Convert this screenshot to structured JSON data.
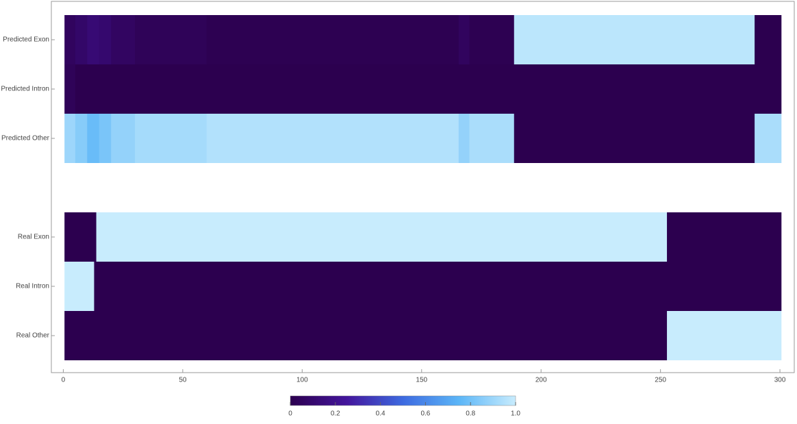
{
  "chart_data": {
    "type": "heatmap",
    "categories": [
      "Predicted Exon",
      "Predicted Intron",
      "Predicted Other",
      null,
      "Real Exon",
      "Real Intron",
      "Real Other"
    ],
    "rows": [
      {
        "bins": [
          0.5,
          5,
          10,
          15,
          20,
          30,
          60,
          165.5,
          170,
          188.7,
          289.4,
          300.5
        ],
        "values": [
          0.05,
          0.08,
          0.12,
          0.1,
          0.06,
          0.03,
          0.01,
          0.05,
          0.01,
          0.97,
          0.0
        ]
      },
      {
        "bins": [
          0.5,
          5,
          300.5
        ],
        "values": [
          0.03,
          0.0
        ]
      },
      {
        "bins": [
          0.5,
          5,
          10,
          15,
          20,
          30,
          60,
          165.5,
          170,
          188.7,
          289.4,
          300.5
        ],
        "values": [
          0.9,
          0.85,
          0.78,
          0.82,
          0.88,
          0.92,
          0.95,
          0.88,
          0.93,
          0.0,
          0.93
        ]
      },
      null,
      {
        "bins": [
          0.5,
          13.8,
          252.7,
          300.5
        ],
        "values": [
          0.0,
          1.0,
          0.0
        ]
      },
      {
        "bins": [
          0.5,
          12.9,
          300.5
        ],
        "values": [
          1.0,
          0.0
        ]
      },
      {
        "bins": [
          0.5,
          252.7,
          300.5
        ],
        "values": [
          0.0,
          1.0
        ]
      }
    ],
    "xlim": [
      -5,
      306
    ],
    "xticks": [
      0,
      50,
      100,
      150,
      200,
      250,
      300
    ],
    "zlim": [
      0,
      1
    ],
    "zticks": [
      0,
      0.2,
      0.4,
      0.6,
      0.8,
      {
        "value": 1,
        "label": "1.0"
      }
    ],
    "colormap": [
      "#2c004f",
      "#43159c",
      "#3d6ae0",
      "#5cb6f7",
      "#c8ecfd"
    ]
  }
}
